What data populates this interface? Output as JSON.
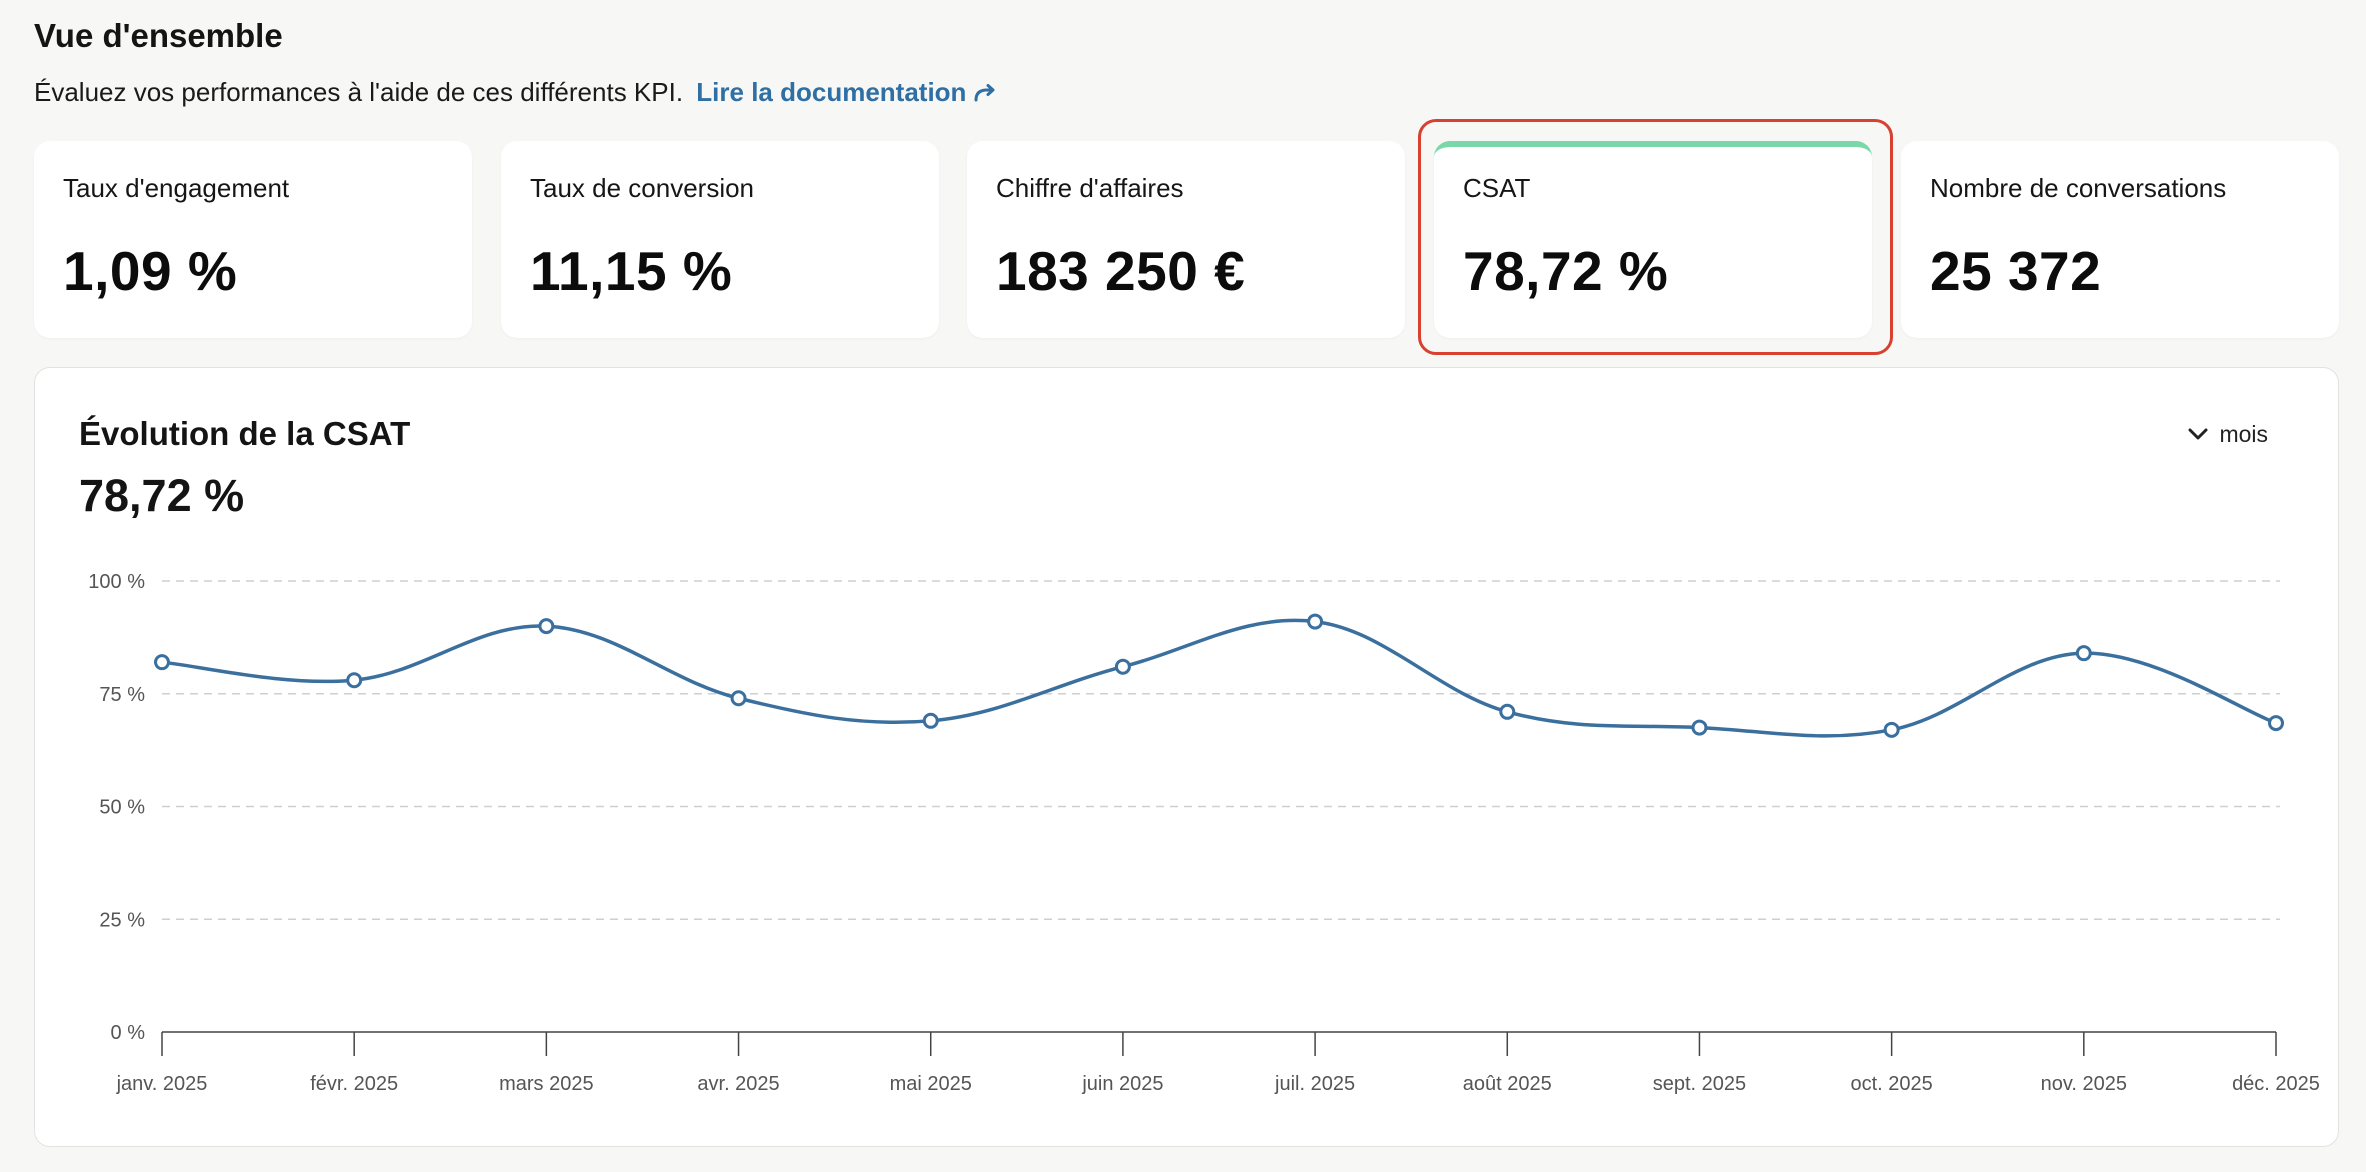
{
  "overview": {
    "title": "Vue d'ensemble",
    "subtitle": "Évaluez vos performances à l'aide de ces différents KPI.",
    "doc_link": "Lire la documentation",
    "doc_link_icon": "arrow-redirect-icon"
  },
  "kpis": [
    {
      "label": "Taux d'engagement",
      "value": "1,09 %"
    },
    {
      "label": "Taux de conversion",
      "value": "11,15 %"
    },
    {
      "label": "Chiffre d'affaires",
      "value": "183 250 €"
    },
    {
      "label": "CSAT",
      "value": "78,72 %",
      "selected": true
    },
    {
      "label": "Nombre de conversations",
      "value": "25 372"
    }
  ],
  "colors": {
    "accent_link": "#2f6fa3",
    "selected_top_border": "#7ad8a8",
    "highlight_outline": "#d8412f",
    "line": "#3a6f9e"
  },
  "chart_panel": {
    "title": "Évolution de la CSAT",
    "value": "78,72 %",
    "period_label": "mois",
    "period_icon": "chevron-down-icon"
  },
  "chart_data": {
    "type": "line",
    "title": "Évolution de la CSAT",
    "xlabel": "",
    "ylabel": "",
    "categories": [
      "janv. 2025",
      "févr. 2025",
      "mars 2025",
      "avr. 2025",
      "mai 2025",
      "juin 2025",
      "juil. 2025",
      "août 2025",
      "sept. 2025",
      "oct. 2025",
      "nov. 2025",
      "déc. 2025"
    ],
    "series": [
      {
        "values": [
          82,
          78,
          90,
          74,
          69,
          81,
          91,
          71,
          67.5,
          67,
          84,
          68.5
        ]
      }
    ],
    "ylim": [
      0,
      100
    ],
    "yticks": [
      0,
      25,
      50,
      75,
      100
    ],
    "ytick_labels": [
      "0 %",
      "25 %",
      "50 %",
      "75 %",
      "100 %"
    ],
    "grid": "horizontal dashed",
    "legend": "none",
    "smooth": true,
    "markers": "hollow circles"
  }
}
